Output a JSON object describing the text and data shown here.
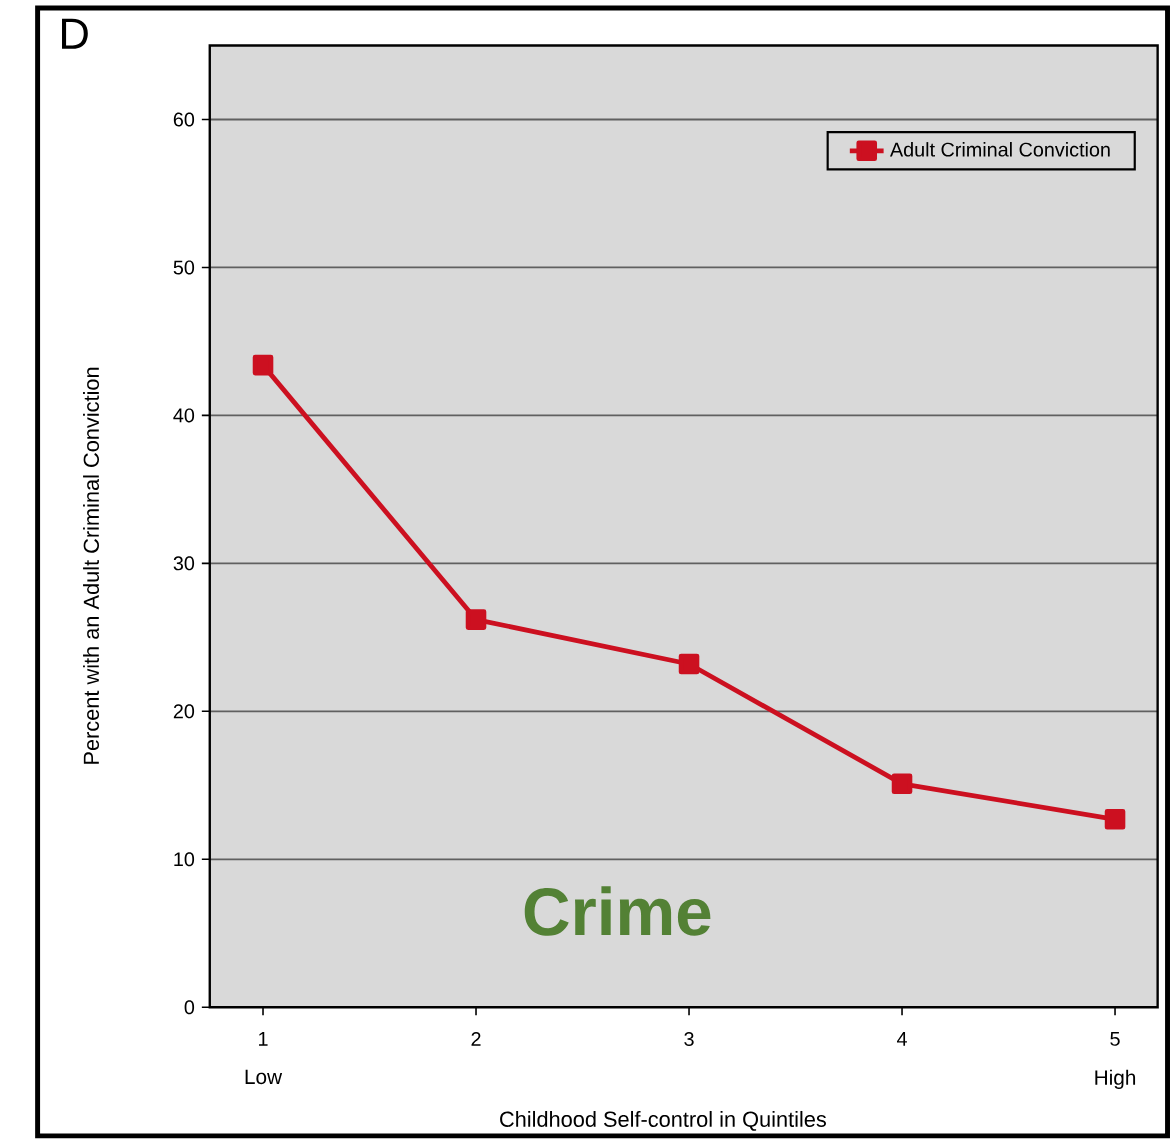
{
  "chart_data": {
    "type": "line",
    "title": "D",
    "xlabel": "Childhood Self-control in Quintiles",
    "ylabel": "Percent with an Adult Criminal Conviction",
    "x": [
      1,
      2,
      3,
      4,
      5
    ],
    "series": [
      {
        "name": "Adult Criminal Conviction",
        "color": "#cc1020",
        "values": [
          43.4,
          26.2,
          23.2,
          15.1,
          12.7
        ]
      }
    ],
    "xlim": [
      0.75,
      5.2
    ],
    "xticks": [
      1,
      2,
      3,
      4,
      5
    ],
    "ylim": [
      0,
      65
    ],
    "yticks": [
      0,
      10,
      20,
      30,
      40,
      50,
      60
    ],
    "annotations": [
      "Low",
      "High",
      "Crime"
    ],
    "grid": "y",
    "legend": "top right",
    "marker": "square",
    "line_style": "solid"
  }
}
